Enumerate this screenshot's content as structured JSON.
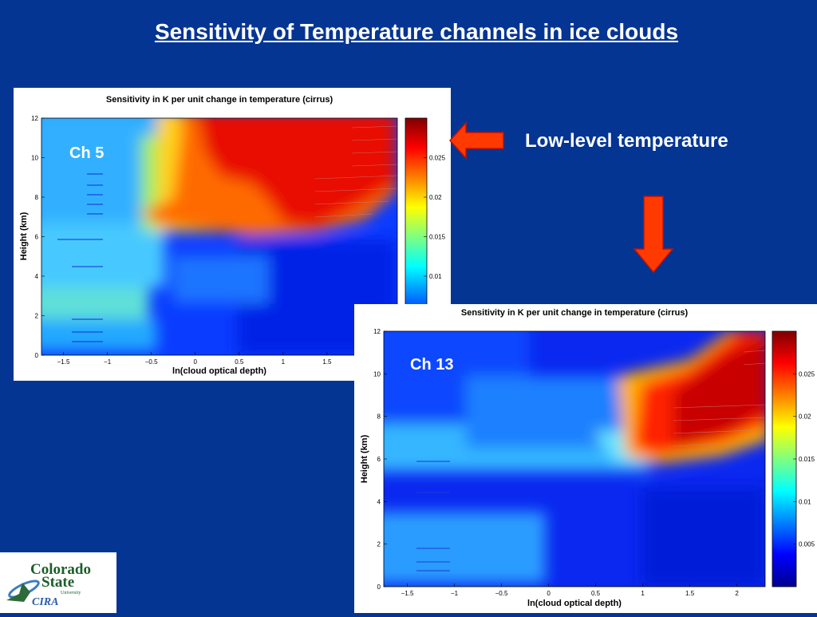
{
  "slide": {
    "title": "Sensitivity of Temperature channels in ice clouds",
    "callout": "Low-level temperature"
  },
  "logo": {
    "line1": "Colorado",
    "line2": "State",
    "line3": "University",
    "line4": "CIRA"
  },
  "colors": {
    "background": "#043593",
    "arrow": "#ff3a00",
    "text": "#ffffff"
  },
  "chart_data": [
    {
      "type": "heatmap",
      "title": "Sensitivity in K per unit change in temperature (cirrus)",
      "channel_label": "Ch 5",
      "xlabel": "ln(cloud optical depth)",
      "ylabel": "Height (km)",
      "xlim": [
        -1.75,
        2.3
      ],
      "ylim": [
        0,
        12
      ],
      "xticks": [
        "-1.5",
        "-1",
        "-0.5",
        "0",
        "0.5",
        "1",
        "1.5"
      ],
      "yticks": [
        "0",
        "2",
        "4",
        "6",
        "8",
        "10",
        "12"
      ],
      "colorbar_ticks": [
        "0.01",
        "0.015",
        "0.02",
        "0.025"
      ],
      "colorbar_range": [
        0.0,
        0.03
      ]
    },
    {
      "type": "heatmap",
      "title": "Sensitivity in K per unit change in temperature (cirrus)",
      "channel_label": "Ch 13",
      "xlabel": "ln(cloud optical depth)",
      "ylabel": "Height (km)",
      "xlim": [
        -1.75,
        2.3
      ],
      "ylim": [
        0,
        12
      ],
      "xticks": [
        "-1.5",
        "-1",
        "-0.5",
        "0",
        "0.5",
        "1",
        "1.5",
        "2"
      ],
      "yticks": [
        "0",
        "2",
        "4",
        "6",
        "8",
        "10",
        "12"
      ],
      "colorbar_ticks": [
        "0.005",
        "0.01",
        "0.015",
        "0.02",
        "0.025"
      ],
      "colorbar_range": [
        0.0,
        0.03
      ]
    }
  ]
}
